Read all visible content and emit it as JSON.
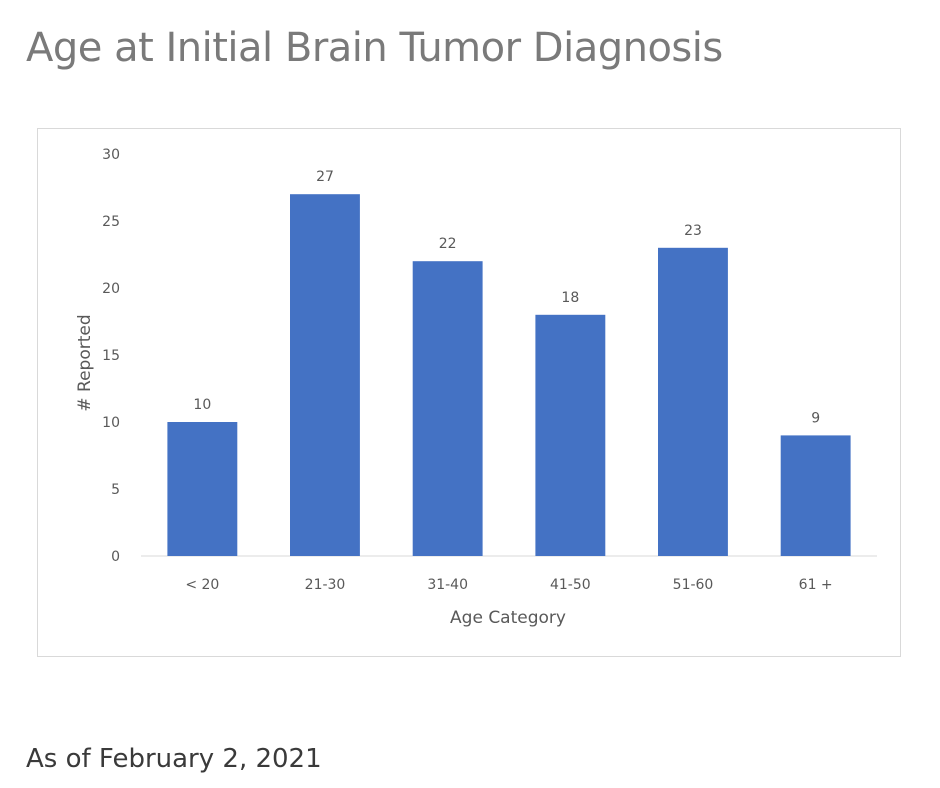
{
  "page": {
    "title": "Age at Initial Brain Tumor Diagnosis",
    "footnote": "As of February 2, 2021"
  },
  "chart_data": {
    "type": "bar",
    "categories": [
      "< 20",
      "21-30",
      "31-40",
      "41-50",
      "51-60",
      "61 +"
    ],
    "values": [
      10,
      27,
      22,
      18,
      23,
      9
    ],
    "xlabel": "Age Category",
    "ylabel": "# Reported",
    "ylim": [
      0,
      30
    ],
    "yticks": [
      0,
      5,
      10,
      15,
      20,
      25,
      30
    ],
    "grid": false,
    "data_labels": true,
    "bar_color": "#4472c4",
    "text_color": "#595959",
    "axis_line_color": "#d9d9d9"
  }
}
